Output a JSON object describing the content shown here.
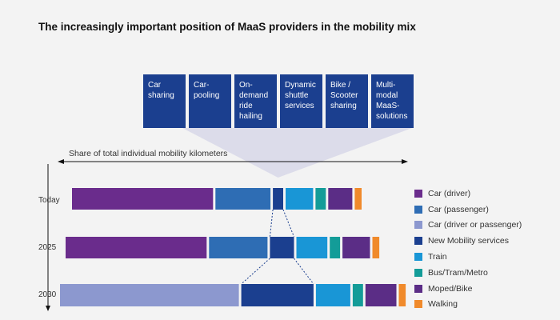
{
  "title": "The increasingly important position of MaaS providers in the mobility mix",
  "services": [
    {
      "label": "Car sharing"
    },
    {
      "label": "Car-pooling"
    },
    {
      "label": "On-demand ride hailing"
    },
    {
      "label": "Dynamic shuttle services"
    },
    {
      "label": "Bike / Scooter sharing"
    },
    {
      "label": "Multi-modal MaaS-solutions"
    }
  ],
  "axis_label": "Share of total individual mobility kilometers",
  "chart_data": {
    "type": "bar",
    "orientation": "horizontal-stacked",
    "title": "The increasingly important position of MaaS providers in the mobility mix",
    "xlabel": "Share of total individual mobility kilometers",
    "categories": [
      "Today",
      "2025",
      "2030"
    ],
    "series": [
      {
        "name": "Car (driver)",
        "color": "#6a2c8c",
        "values": [
          41,
          41,
          0
        ]
      },
      {
        "name": "Car (passenger)",
        "color": "#2e6db4",
        "values": [
          16,
          17,
          0
        ]
      },
      {
        "name": "Car (driver or passenger)",
        "color": "#8c98cf",
        "values": [
          0,
          0,
          52
        ]
      },
      {
        "name": "New Mobility services",
        "color": "#1b3f8f",
        "values": [
          3,
          7,
          21
        ]
      },
      {
        "name": "Train",
        "color": "#1996d6",
        "values": [
          8,
          9,
          10
        ]
      },
      {
        "name": "Bus/Tram/Metro",
        "color": "#139c98",
        "values": [
          3,
          3,
          3
        ]
      },
      {
        "name": "Moped/Bike",
        "color": "#5b2d86",
        "values": [
          7,
          8,
          9
        ]
      },
      {
        "name": "Walking",
        "color": "#f08a2b",
        "values": [
          2,
          2,
          2
        ]
      }
    ],
    "legend_position": "right",
    "grid": false
  }
}
